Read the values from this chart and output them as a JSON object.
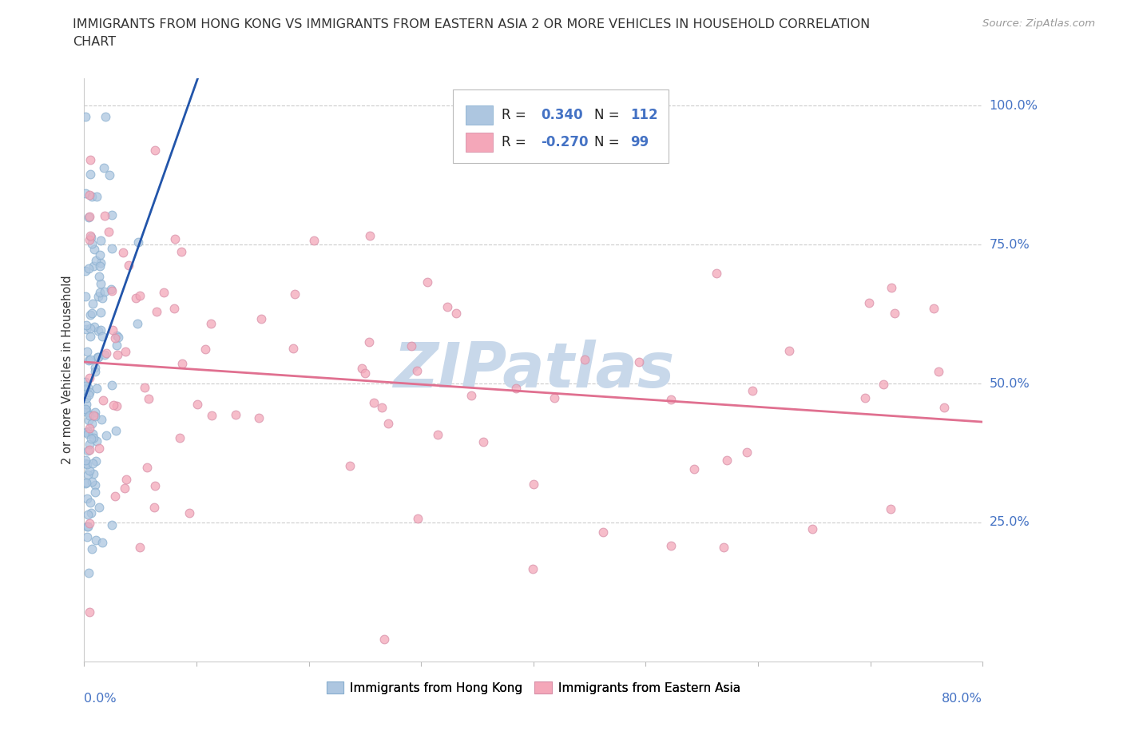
{
  "title_line1": "IMMIGRANTS FROM HONG KONG VS IMMIGRANTS FROM EASTERN ASIA 2 OR MORE VEHICLES IN HOUSEHOLD CORRELATION",
  "title_line2": "CHART",
  "source": "Source: ZipAtlas.com",
  "ylabel": "2 or more Vehicles in Household",
  "xlim": [
    0.0,
    0.8
  ],
  "ylim": [
    0.0,
    1.05
  ],
  "hk_R": 0.34,
  "hk_N": 112,
  "ea_R": -0.27,
  "ea_N": 99,
  "hk_color": "#adc6e0",
  "hk_line_color": "#2255aa",
  "ea_color": "#f4a7b9",
  "ea_line_color": "#e07090",
  "legend_label_hk": "Immigrants from Hong Kong",
  "legend_label_ea": "Immigrants from Eastern Asia",
  "watermark": "ZIPatlas",
  "watermark_color": "#c8d8ea",
  "bg_color": "#ffffff",
  "grid_color": "#cccccc",
  "ytick_right_color": "#4472c4",
  "xlabel_color": "#4472c4"
}
